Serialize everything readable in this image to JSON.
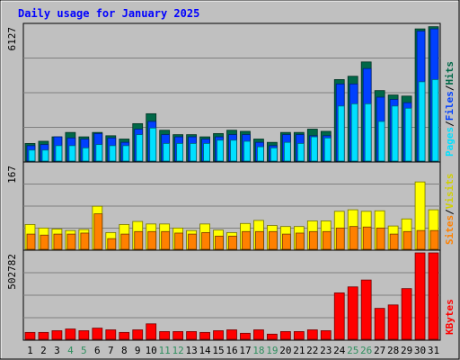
{
  "chart_data": {
    "type": "bar",
    "title": "Daily usage for January 2025",
    "categories": [
      "1",
      "2",
      "3",
      "4",
      "5",
      "6",
      "7",
      "8",
      "9",
      "10",
      "11",
      "12",
      "13",
      "14",
      "15",
      "16",
      "17",
      "18",
      "19",
      "20",
      "21",
      "22",
      "23",
      "24",
      "25",
      "26",
      "27",
      "28",
      "29",
      "30",
      "31"
    ],
    "weekend_days": [
      "4",
      "5",
      "11",
      "12",
      "18",
      "19",
      "25",
      "26"
    ],
    "panels": [
      {
        "ylabel_max": "6127",
        "ylim": [
          0,
          6127
        ],
        "series": [
          {
            "name": "Hits",
            "color": "#006848",
            "values": [
              800,
              900,
              1100,
              1300,
              1100,
              1300,
              1150,
              1000,
              1700,
              2150,
              1400,
              1200,
              1200,
              1100,
              1250,
              1400,
              1350,
              1000,
              850,
              1300,
              1300,
              1450,
              1350,
              3700,
              3850,
              4500,
              3200,
              3000,
              2950,
              6000,
              6100
            ]
          },
          {
            "name": "Files",
            "color": "#0040ff",
            "values": [
              700,
              750,
              1100,
              1050,
              1000,
              1250,
              1050,
              850,
              1450,
              1800,
              1200,
              1100,
              1100,
              1000,
              1100,
              1200,
              1200,
              850,
              700,
              1200,
              1200,
              1150,
              1150,
              3500,
              3500,
              4200,
              2900,
              2800,
              2650,
              5900,
              6000
            ]
          },
          {
            "name": "Pages",
            "color": "#00e0ff",
            "values": [
              500,
              500,
              700,
              700,
              600,
              750,
              700,
              700,
              1200,
              1500,
              800,
              800,
              800,
              800,
              950,
              950,
              900,
              650,
              600,
              850,
              800,
              1100,
              1050,
              2500,
              2600,
              2600,
              1800,
              2500,
              2400,
              3600,
              3700
            ]
          }
        ]
      },
      {
        "ylabel_max": "167",
        "ylim": [
          0,
          167
        ],
        "series": [
          {
            "name": "Visits",
            "color": "#ffff00",
            "values": [
              49,
              42,
              40,
              37,
              39,
              85,
              33,
              49,
              55,
              50,
              50,
              42,
              37,
              50,
              38,
              33,
              51,
              57,
              47,
              45,
              45,
              56,
              56,
              75,
              78,
              75,
              76,
              46,
              60,
              133,
              78
            ]
          },
          {
            "name": "Sites",
            "color": "#ff8000",
            "values": [
              30,
              28,
              30,
              30,
              32,
              70,
              21,
              30,
              35,
              35,
              35,
              32,
              30,
              33,
              26,
              26,
              35,
              35,
              35,
              30,
              32,
              35,
              35,
              42,
              45,
              44,
              42,
              30,
              35,
              37,
              37
            ]
          }
        ]
      },
      {
        "ylabel_max": "502782",
        "ylim": [
          0,
          502782
        ],
        "series": [
          {
            "name": "KBytes",
            "color": "#ff0000",
            "values": [
              40000,
              40000,
              50000,
              60000,
              50000,
              65000,
              55000,
              40000,
              55000,
              90000,
              45000,
              45000,
              45000,
              40000,
              50000,
              55000,
              35000,
              55000,
              30000,
              45000,
              45000,
              55000,
              50000,
              270000,
              305000,
              345000,
              180000,
              200000,
              295000,
              502782,
              502782
            ]
          }
        ]
      }
    ]
  }
}
